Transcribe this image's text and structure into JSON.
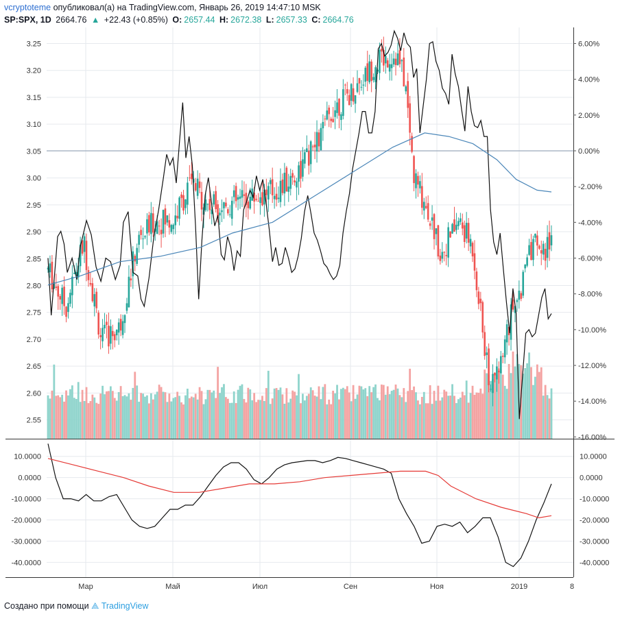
{
  "header": {
    "user": "vcryptoteme",
    "published": "опубликовал(а) на TradingView.com, Январь 26, 2019 14:47:10 MSK",
    "symbol": "SP:SPX, 1D",
    "last": "2664.76",
    "arrow": "▲",
    "change": "+22.43 (+0.85%)",
    "o_label": "O:",
    "o_value": "2657.44",
    "h_label": "H:",
    "h_value": "2672.38",
    "l_label": "L:",
    "l_value": "2657.33",
    "c_label": "C:",
    "c_value": "2664.76"
  },
  "footer": {
    "text": "Создано при помощи",
    "brand": "TradingView"
  },
  "colors": {
    "up": "#26a69a",
    "down": "#ef5350",
    "vol_up": "#8fd4cc",
    "vol_down": "#f4a3a2",
    "black_line": "#111111",
    "ma_line": "#4a86b8",
    "osc_red": "#e53935",
    "grid": "#e6e9ee"
  },
  "chart_data": {
    "type": "line",
    "x_labels": [
      "Мар",
      "Май",
      "Июл",
      "Сен",
      "Ноя",
      "2019",
      "8"
    ],
    "main_pane": {
      "left_axis": {
        "ticks": [
          "3.25",
          "3.20",
          "3.15",
          "3.10",
          "3.05",
          "3.00",
          "2.95",
          "2.90",
          "2.85",
          "2.80",
          "2.75",
          "2.70",
          "2.65",
          "2.60",
          "2.55"
        ],
        "ylim": [
          2.515,
          3.28
        ]
      },
      "right_axis": {
        "ticks": [
          "6.00%",
          "4.00%",
          "2.00%",
          "0.00%",
          "-2.00%",
          "-4.00%",
          "-6.00%",
          "-8.00%",
          "-10.00%",
          "-12.00%",
          "-14.00%",
          "-16.00%"
        ],
        "ylim": [
          -16.1,
          6.9
        ]
      },
      "series": [
        {
          "kind": "line",
          "axis": "right",
          "points": [
            [
              0,
              -6
            ],
            [
              2,
              -9.2
            ],
            [
              4,
              -7
            ],
            [
              6,
              -4.8
            ],
            [
              8,
              -4.5
            ],
            [
              10,
              -5.2
            ],
            [
              12,
              -6.8
            ],
            [
              15,
              -6
            ],
            [
              18,
              -7.2
            ],
            [
              20,
              -5.4
            ],
            [
              24,
              -3.9
            ],
            [
              27,
              -4.7
            ],
            [
              30,
              -6.5
            ],
            [
              33,
              -7.3
            ],
            [
              36,
              -6
            ],
            [
              39,
              -6.2
            ],
            [
              42,
              -7.2
            ],
            [
              45,
              -6.4
            ],
            [
              47,
              -4
            ],
            [
              50,
              -3.4
            ],
            [
              53,
              -6.8
            ],
            [
              56,
              -7
            ],
            [
              58,
              -8.3
            ],
            [
              60,
              -8.7
            ],
            [
              63,
              -7.1
            ],
            [
              66,
              -4.8
            ],
            [
              69,
              -3.3
            ],
            [
              72,
              -1.5
            ],
            [
              74,
              -0.2
            ],
            [
              76,
              -0.8
            ],
            [
              78,
              -0.4
            ],
            [
              80,
              -1.8
            ],
            [
              82,
              0.5
            ],
            [
              84,
              2.7
            ],
            [
              86,
              -0.4
            ],
            [
              88,
              0.8
            ],
            [
              90,
              -0.8
            ],
            [
              92,
              -4.2
            ],
            [
              94,
              -8.3
            ],
            [
              96,
              -5
            ],
            [
              98,
              -2.5
            ],
            [
              100,
              -1.5
            ],
            [
              102,
              -2.9
            ],
            [
              104,
              -4.2
            ],
            [
              106,
              -3.6
            ],
            [
              108,
              -5.8
            ],
            [
              110,
              -6.1
            ],
            [
              112,
              -4.8
            ],
            [
              114,
              -5.4
            ],
            [
              116,
              -6.7
            ],
            [
              118,
              -5.6
            ],
            [
              120,
              -5.9
            ],
            [
              122,
              -3.3
            ],
            [
              124,
              -2.8
            ],
            [
              126,
              -2.2
            ],
            [
              128,
              -2.6
            ],
            [
              130,
              -1.4
            ],
            [
              132,
              -2.2
            ],
            [
              134,
              -1.6
            ],
            [
              136,
              -2.9
            ],
            [
              138,
              -4.4
            ],
            [
              140,
              -6.2
            ],
            [
              142,
              -5.4
            ],
            [
              144,
              -6.4
            ],
            [
              146,
              -6.3
            ],
            [
              148,
              -5.4
            ],
            [
              150,
              -6
            ],
            [
              152,
              -6.8
            ],
            [
              154,
              -6.6
            ],
            [
              156,
              -5.9
            ],
            [
              158,
              -4.9
            ],
            [
              160,
              -3.4
            ],
            [
              162,
              -2.5
            ],
            [
              164,
              -3.5
            ],
            [
              166,
              -4.6
            ],
            [
              168,
              -5
            ],
            [
              170,
              -5.6
            ],
            [
              172,
              -6.3
            ],
            [
              174,
              -6.5
            ],
            [
              176,
              -6.9
            ],
            [
              178,
              -7.2
            ],
            [
              180,
              -7
            ],
            [
              182,
              -6.4
            ],
            [
              184,
              -4.6
            ],
            [
              186,
              -3.4
            ],
            [
              188,
              -2.4
            ],
            [
              190,
              -1
            ],
            [
              192,
              0
            ],
            [
              194,
              1
            ],
            [
              196,
              2.2
            ],
            [
              198,
              2.2
            ],
            [
              200,
              1
            ],
            [
              202,
              1
            ],
            [
              204,
              2.2
            ],
            [
              206,
              5.7
            ],
            [
              208,
              6
            ],
            [
              210,
              5.3
            ],
            [
              212,
              5.5
            ],
            [
              214,
              5.9
            ],
            [
              216,
              6.7
            ],
            [
              218,
              6.3
            ],
            [
              220,
              5.6
            ],
            [
              222,
              6.6
            ],
            [
              224,
              6
            ],
            [
              226,
              5.8
            ],
            [
              228,
              4.1
            ],
            [
              230,
              4.6
            ],
            [
              232,
              1
            ],
            [
              234,
              2.5
            ],
            [
              236,
              4
            ],
            [
              238,
              6
            ],
            [
              240,
              6.1
            ],
            [
              242,
              5
            ],
            [
              244,
              4.5
            ],
            [
              246,
              3.5
            ],
            [
              248,
              3.2
            ],
            [
              250,
              2.6
            ],
            [
              252,
              5.4
            ],
            [
              254,
              4.3
            ],
            [
              256,
              3.6
            ],
            [
              258,
              2.3
            ],
            [
              260,
              1.1
            ],
            [
              262,
              3.6
            ],
            [
              264,
              2.2
            ],
            [
              266,
              1.4
            ],
            [
              268,
              1.3
            ],
            [
              270,
              1.7
            ],
            [
              272,
              0.8
            ],
            [
              274,
              0.8
            ],
            [
              276,
              -3.3
            ],
            [
              278,
              -5.1
            ],
            [
              280,
              -5.8
            ],
            [
              282,
              -4.6
            ],
            [
              284,
              -6.6
            ],
            [
              286,
              -8.5
            ],
            [
              288,
              -10.2
            ],
            [
              290,
              -7.7
            ],
            [
              292,
              -9.1
            ],
            [
              294,
              -15
            ],
            [
              296,
              -12.6
            ],
            [
              298,
              -10.2
            ],
            [
              300,
              -10
            ],
            [
              302,
              -10.4
            ],
            [
              304,
              -10.2
            ],
            [
              306,
              -9.2
            ],
            [
              308,
              -8.2
            ],
            [
              310,
              -7.7
            ],
            [
              312,
              -9.4
            ],
            [
              314,
              -9.1
            ]
          ]
        },
        {
          "kind": "line",
          "axis": "right",
          "points": [
            [
              0,
              -7.5
            ],
            [
              20,
              -7
            ],
            [
              45,
              -6.2
            ],
            [
              70,
              -5.9
            ],
            [
              95,
              -5.4
            ],
            [
              115,
              -4.6
            ],
            [
              140,
              -4
            ],
            [
              165,
              -2.6
            ],
            [
              190,
              -1.2
            ],
            [
              215,
              0.2
            ],
            [
              235,
              1
            ],
            [
              250,
              0.8
            ],
            [
              265,
              0.4
            ],
            [
              280,
              -0.5
            ],
            [
              292,
              -1.6
            ],
            [
              305,
              -2.2
            ],
            [
              314,
              -2.3
            ]
          ]
        }
      ],
      "candles": "volatile daily OHLC bars from Feb 2018 through Jan 2019, alternating up/down",
      "volume": "daily volume bars colored by candle direction"
    },
    "osc_pane": {
      "ticks": [
        "10.0000",
        "0.0000",
        "-10.0000",
        "-20.0000",
        "-30.0000",
        "-40.0000"
      ],
      "ylim": [
        -47,
        18
      ],
      "series": [
        {
          "kind": "line",
          "color": "black",
          "points": [
            [
              0,
              16
            ],
            [
              5,
              0
            ],
            [
              10,
              -10
            ],
            [
              15,
              -10
            ],
            [
              20,
              -11
            ],
            [
              25,
              -8
            ],
            [
              30,
              -11
            ],
            [
              35,
              -11
            ],
            [
              40,
              -9
            ],
            [
              45,
              -8
            ],
            [
              50,
              -14
            ],
            [
              55,
              -20
            ],
            [
              60,
              -23
            ],
            [
              65,
              -24
            ],
            [
              70,
              -23
            ],
            [
              75,
              -19
            ],
            [
              80,
              -15
            ],
            [
              85,
              -15
            ],
            [
              90,
              -13
            ],
            [
              95,
              -13
            ],
            [
              100,
              -9
            ],
            [
              105,
              -4
            ],
            [
              110,
              1
            ],
            [
              115,
              5
            ],
            [
              120,
              7
            ],
            [
              125,
              7
            ],
            [
              130,
              4
            ],
            [
              135,
              -1
            ],
            [
              140,
              -3
            ],
            [
              145,
              0
            ],
            [
              150,
              4
            ],
            [
              155,
              6
            ],
            [
              160,
              7
            ],
            [
              165,
              7.5
            ],
            [
              170,
              8
            ],
            [
              175,
              8
            ],
            [
              180,
              7
            ],
            [
              185,
              8
            ],
            [
              190,
              9.5
            ],
            [
              195,
              9
            ],
            [
              200,
              8
            ],
            [
              205,
              7
            ],
            [
              210,
              6
            ],
            [
              215,
              5
            ],
            [
              220,
              4
            ],
            [
              225,
              2
            ],
            [
              230,
              -10
            ],
            [
              235,
              -17
            ],
            [
              240,
              -23
            ],
            [
              245,
              -31
            ],
            [
              250,
              -30
            ],
            [
              255,
              -23
            ],
            [
              260,
              -22
            ],
            [
              265,
              -23
            ],
            [
              270,
              -21
            ],
            [
              275,
              -26
            ],
            [
              280,
              -23
            ],
            [
              285,
              -19
            ],
            [
              290,
              -19
            ],
            [
              295,
              -28
            ],
            [
              300,
              -40
            ],
            [
              305,
              -42
            ],
            [
              310,
              -38
            ],
            [
              315,
              -30
            ],
            [
              320,
              -20
            ],
            [
              325,
              -12
            ],
            [
              330,
              -3
            ]
          ]
        },
        {
          "kind": "line",
          "color": "red",
          "points": [
            [
              0,
              9
            ],
            [
              20,
              6
            ],
            [
              40,
              3
            ],
            [
              60,
              0
            ],
            [
              80,
              -4
            ],
            [
              100,
              -7
            ],
            [
              120,
              -7
            ],
            [
              140,
              -5
            ],
            [
              160,
              -3
            ],
            [
              180,
              -3
            ],
            [
              200,
              -2
            ],
            [
              220,
              0
            ],
            [
              240,
              1
            ],
            [
              260,
              2
            ],
            [
              280,
              3
            ],
            [
              300,
              3
            ],
            [
              310,
              1
            ],
            [
              320,
              -4
            ],
            [
              340,
              -10
            ],
            [
              360,
              -14
            ],
            [
              380,
              -17
            ],
            [
              390,
              -19
            ],
            [
              400,
              -18
            ]
          ]
        }
      ]
    }
  }
}
